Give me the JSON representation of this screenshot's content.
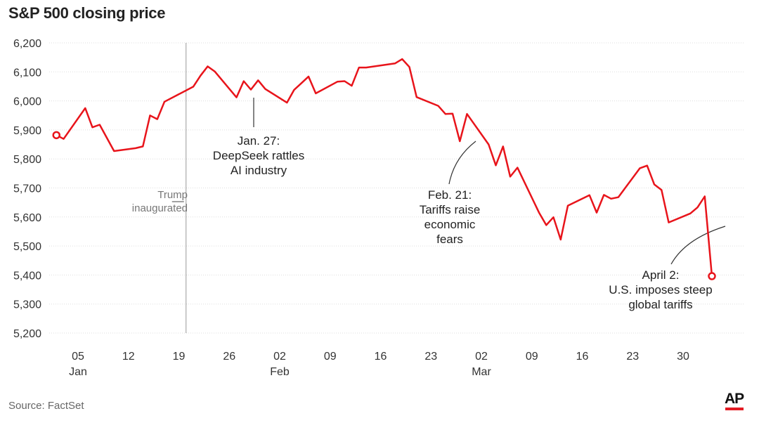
{
  "title": "S&P 500 closing price",
  "source": "Source: FactSet",
  "logo": "AP",
  "colors": {
    "line": "#e8141b",
    "grid": "#dddddd",
    "text": "#222222",
    "accent": "#e31b23"
  },
  "chart_data": {
    "type": "line",
    "title": "S&P 500 closing price",
    "xlabel": "",
    "ylabel": "",
    "ylim": [
      5200,
      6200
    ],
    "yticks": [
      "6,200",
      "6,100",
      "6,000",
      "5,900",
      "5,800",
      "5,700",
      "5,600",
      "5,500",
      "5,400",
      "5,300",
      "5,200"
    ],
    "xticks": [
      {
        "label": "05",
        "date": "2025-01-05",
        "month": "Jan"
      },
      {
        "label": "12",
        "date": "2025-01-12"
      },
      {
        "label": "19",
        "date": "2025-01-19"
      },
      {
        "label": "26",
        "date": "2025-01-26"
      },
      {
        "label": "02",
        "date": "2025-02-02",
        "month": "Feb"
      },
      {
        "label": "09",
        "date": "2025-02-09"
      },
      {
        "label": "16",
        "date": "2025-02-16"
      },
      {
        "label": "23",
        "date": "2025-02-23"
      },
      {
        "label": "02",
        "date": "2025-03-02",
        "month": "Mar"
      },
      {
        "label": "09",
        "date": "2025-03-09"
      },
      {
        "label": "16",
        "date": "2025-03-16"
      },
      {
        "label": "23",
        "date": "2025-03-23"
      },
      {
        "label": "30",
        "date": "2025-03-30"
      }
    ],
    "grid": true,
    "series": [
      {
        "x": [
          "2025-01-02",
          "2025-01-03",
          "2025-01-06",
          "2025-01-07",
          "2025-01-08",
          "2025-01-10",
          "2025-01-13",
          "2025-01-14",
          "2025-01-15",
          "2025-01-16",
          "2025-01-17",
          "2025-01-21",
          "2025-01-22",
          "2025-01-23",
          "2025-01-24",
          "2025-01-27",
          "2025-01-28",
          "2025-01-29",
          "2025-01-30",
          "2025-01-31",
          "2025-02-03",
          "2025-02-04",
          "2025-02-05",
          "2025-02-06",
          "2025-02-07",
          "2025-02-10",
          "2025-02-11",
          "2025-02-12",
          "2025-02-13",
          "2025-02-14",
          "2025-02-18",
          "2025-02-19",
          "2025-02-20",
          "2025-02-21",
          "2025-02-24",
          "2025-02-25",
          "2025-02-26",
          "2025-02-27",
          "2025-02-28",
          "2025-03-03",
          "2025-03-04",
          "2025-03-05",
          "2025-03-06",
          "2025-03-07",
          "2025-03-10",
          "2025-03-11",
          "2025-03-12",
          "2025-03-13",
          "2025-03-14",
          "2025-03-17",
          "2025-03-18",
          "2025-03-19",
          "2025-03-20",
          "2025-03-21",
          "2025-03-24",
          "2025-03-25",
          "2025-03-26",
          "2025-03-27",
          "2025-03-28",
          "2025-03-31",
          "2025-04-01",
          "2025-04-02",
          "2025-04-03"
        ],
        "y": [
          5882,
          5869,
          5975,
          5909,
          5918,
          5827,
          5837,
          5843,
          5950,
          5937,
          5997,
          6049,
          6087,
          6119,
          6101,
          6012,
          6068,
          6039,
          6071,
          6041,
          5994,
          6038,
          6061,
          6084,
          6026,
          6066,
          6068,
          6052,
          6115,
          6115,
          6129,
          6144,
          6117,
          6013,
          5983,
          5955,
          5956,
          5861,
          5955,
          5850,
          5778,
          5843,
          5739,
          5770,
          5615,
          5572,
          5599,
          5522,
          5639,
          5675,
          5615,
          5676,
          5663,
          5668,
          5768,
          5777,
          5712,
          5693,
          5581,
          5612,
          5633,
          5671,
          5396
        ]
      }
    ],
    "annotations": [
      {
        "lines": [
          "Jan. 27:",
          "DeepSeek rattles",
          "AI industry"
        ],
        "date": "2025-01-27"
      },
      {
        "lines": [
          "Feb. 21:",
          "Tariffs raise",
          "economic",
          "fears"
        ],
        "date": "2025-02-21"
      },
      {
        "lines": [
          "April 2:",
          "U.S. imposes steep",
          "global tariffs"
        ],
        "date": "2025-04-02"
      },
      {
        "lines": [
          "Trump",
          "inaugurated"
        ],
        "date": "2025-01-20"
      }
    ]
  }
}
